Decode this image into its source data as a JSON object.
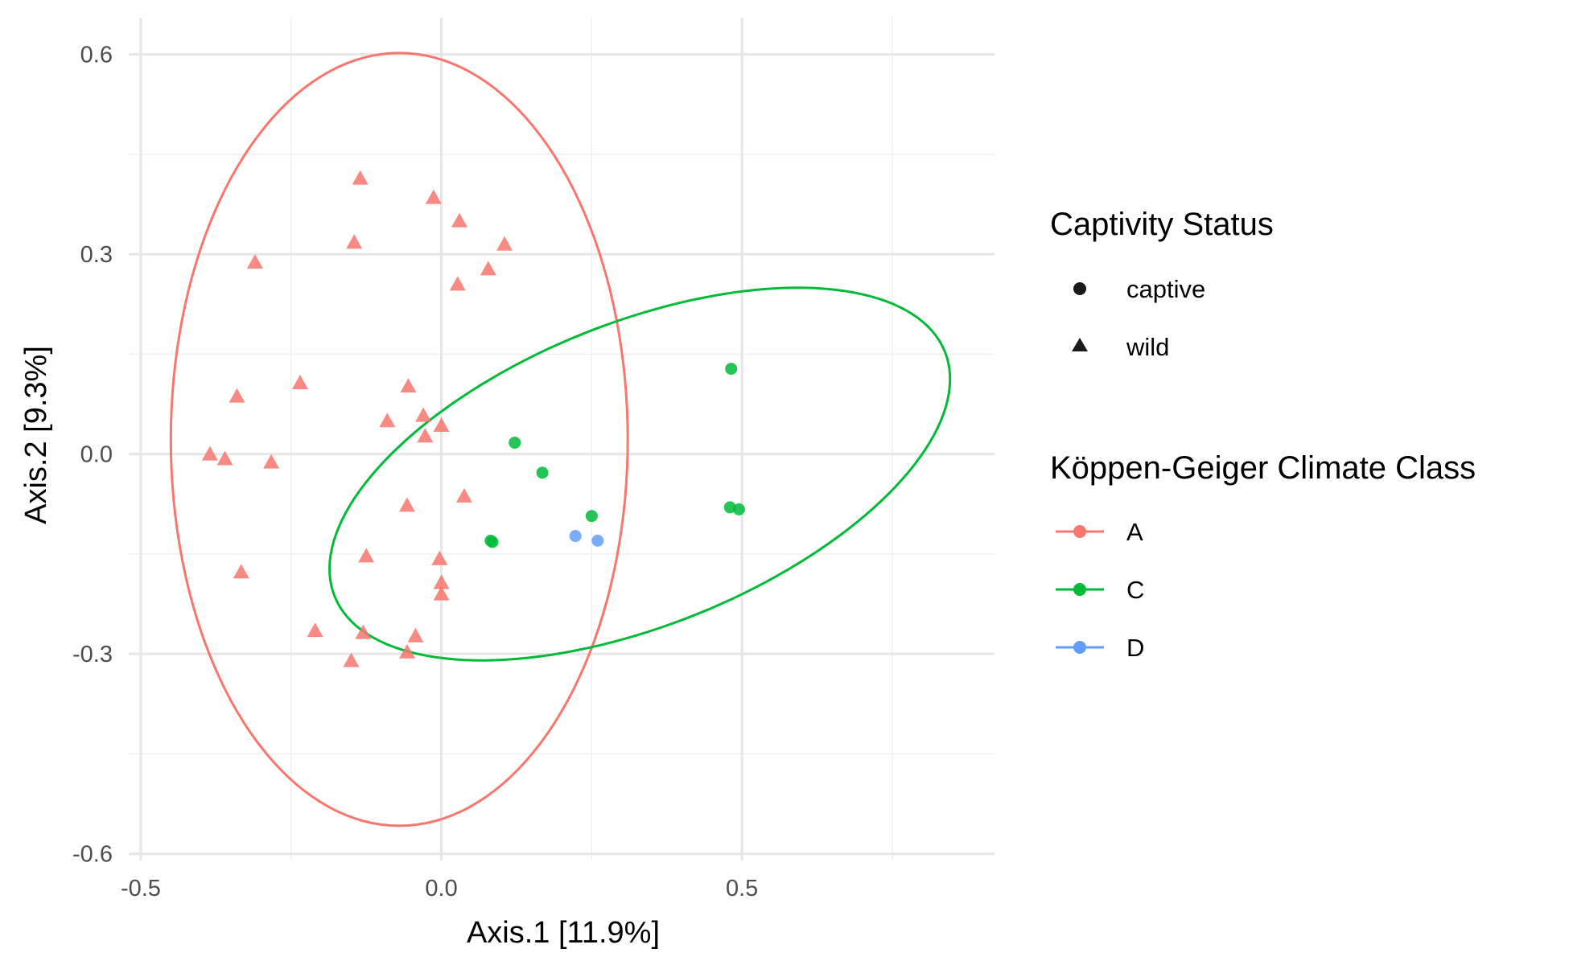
{
  "chart_data": {
    "type": "scatter",
    "xlabel": "Axis.1   [11.9%]",
    "ylabel": "Axis.2   [9.3%]",
    "xlim": [
      -0.52,
      0.92
    ],
    "ylim": [
      -0.61,
      0.655
    ],
    "grid": true,
    "x_ticks": [
      {
        "value": -0.5,
        "label": "-0.5"
      },
      {
        "value": 0.0,
        "label": "0.0"
      },
      {
        "value": 0.5,
        "label": "0.5"
      }
    ],
    "x_minor_ticks": [
      -0.25,
      0.25,
      0.75
    ],
    "y_ticks": [
      {
        "value": 0.6,
        "label": "0.6"
      },
      {
        "value": 0.3,
        "label": "0.3"
      },
      {
        "value": 0.0,
        "label": "0.0"
      },
      {
        "value": -0.3,
        "label": "-0.3"
      },
      {
        "value": -0.6,
        "label": "-0.6"
      }
    ],
    "y_minor_ticks": [
      0.45,
      0.15,
      -0.15,
      -0.45
    ],
    "legend_position": "right",
    "legends": [
      {
        "title": "Captivity Status",
        "entries": [
          {
            "label": "captive",
            "shape": "circle"
          },
          {
            "label": "wild",
            "shape": "triangle"
          }
        ]
      },
      {
        "title": "Köppen-Geiger Climate Class",
        "entries": [
          {
            "label": "A",
            "color": "#F8766D"
          },
          {
            "label": "C",
            "color": "#00BA38"
          },
          {
            "label": "D",
            "color": "#619CFF"
          }
        ]
      }
    ],
    "series": [
      {
        "name": "A",
        "color": "#F8766D",
        "shape": "triangle",
        "points": [
          [
            -0.135,
            0.414
          ],
          [
            -0.013,
            0.385
          ],
          [
            0.03,
            0.35
          ],
          [
            -0.145,
            0.318
          ],
          [
            0.105,
            0.315
          ],
          [
            -0.31,
            0.288
          ],
          [
            0.078,
            0.278
          ],
          [
            0.027,
            0.255
          ],
          [
            -0.235,
            0.107
          ],
          [
            -0.055,
            0.102
          ],
          [
            -0.34,
            0.087
          ],
          [
            -0.03,
            0.058
          ],
          [
            -0.09,
            0.05
          ],
          [
            0.0,
            0.043
          ],
          [
            -0.027,
            0.027
          ],
          [
            -0.385,
            0.0
          ],
          [
            -0.36,
            -0.007
          ],
          [
            -0.283,
            -0.012
          ],
          [
            0.038,
            -0.063
          ],
          [
            -0.057,
            -0.077
          ],
          [
            -0.125,
            -0.153
          ],
          [
            -0.003,
            -0.157
          ],
          [
            -0.333,
            -0.177
          ],
          [
            0.0,
            -0.193
          ],
          [
            0.0,
            -0.21
          ],
          [
            -0.21,
            -0.265
          ],
          [
            -0.13,
            -0.268
          ],
          [
            -0.043,
            -0.273
          ],
          [
            -0.057,
            -0.297
          ],
          [
            -0.15,
            -0.31
          ]
        ]
      },
      {
        "name": "C",
        "color": "#00BA38",
        "shape": "circle",
        "points": [
          [
            0.482,
            0.128
          ],
          [
            0.122,
            0.017
          ],
          [
            0.168,
            -0.028
          ],
          [
            0.495,
            -0.083
          ],
          [
            0.48,
            -0.08
          ],
          [
            0.25,
            -0.093
          ],
          [
            0.082,
            -0.13
          ],
          [
            0.085,
            -0.132
          ]
        ]
      },
      {
        "name": "D",
        "color": "#619CFF",
        "shape": "circle",
        "points": [
          [
            0.223,
            -0.123
          ],
          [
            0.26,
            -0.13
          ]
        ]
      }
    ],
    "ellipses": [
      {
        "series": "A",
        "color": "#F8766D",
        "center": [
          -0.07,
          0.022
        ],
        "radii": [
          0.38,
          0.58
        ],
        "rotation_deg": 0
      },
      {
        "series": "C",
        "color": "#00BA38",
        "center": [
          0.33,
          -0.03
        ],
        "radii": [
          0.54,
          0.23
        ],
        "rotation_deg": 19
      }
    ]
  }
}
